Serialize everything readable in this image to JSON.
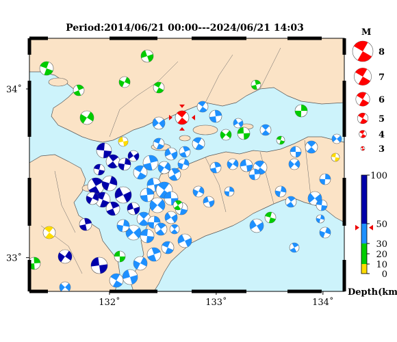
{
  "title": "Period:2014/06/21 00:00---2024/06/21 14:03",
  "map": {
    "lon_range": [
      131.25,
      134.2
    ],
    "lat_range": [
      32.8,
      34.3
    ],
    "lon_ticks": [
      132,
      133,
      134
    ],
    "lat_ticks": [
      33,
      34
    ],
    "lon_tick_labels": [
      "132˚",
      "133˚",
      "134˚"
    ],
    "lat_tick_labels": [
      "33˚",
      "34˚"
    ],
    "colors": {
      "land": "#fbe3c6",
      "sea": "#cdf3fb",
      "coast": "#555555"
    }
  },
  "magnitude_legend": {
    "title": "M",
    "entries": [
      {
        "label": "8",
        "mag": 8
      },
      {
        "label": "7",
        "mag": 7
      },
      {
        "label": "6",
        "mag": 6
      },
      {
        "label": "5",
        "mag": 5
      },
      {
        "label": "4",
        "mag": 4
      },
      {
        "label": "3",
        "mag": 3
      }
    ],
    "color": "#ff0000"
  },
  "depth_legend": {
    "title": "Depth(km)",
    "ticks": [
      "100",
      "50",
      "30",
      "20",
      "10",
      "0"
    ],
    "colors": {
      "deep": "#0000aa",
      "mid": "#1e90ff",
      "shallow": "#00cc00",
      "surface": "#ffdd00"
    },
    "marker_depth": 46
  },
  "highlight_event": {
    "lon": 132.68,
    "lat": 33.83,
    "mag": 5.3,
    "color": "#ff0000"
  }
}
